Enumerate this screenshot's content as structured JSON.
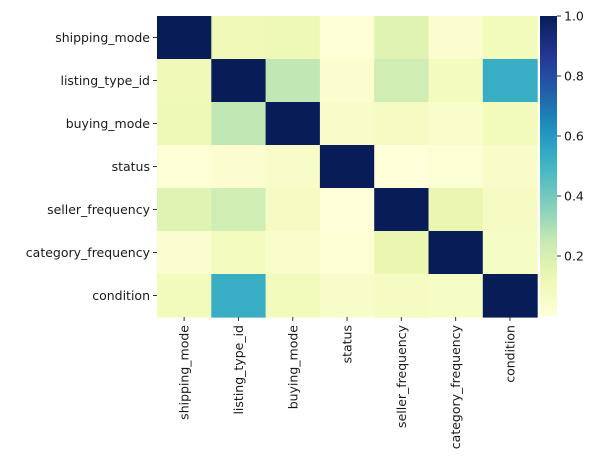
{
  "chart_data": {
    "type": "heatmap",
    "title": "",
    "xlabel": "",
    "ylabel": "",
    "rows": [
      "shipping_mode",
      "listing_type_id",
      "buying_mode",
      "status",
      "seller_frequency",
      "category_frequency",
      "condition"
    ],
    "columns": [
      "shipping_mode",
      "listing_type_id",
      "buying_mode",
      "status",
      "seller_frequency",
      "category_frequency",
      "condition"
    ],
    "values": [
      [
        1.0,
        0.1,
        0.11,
        0.01,
        0.17,
        0.03,
        0.09
      ],
      [
        0.1,
        1.0,
        0.26,
        0.03,
        0.22,
        0.08,
        0.53
      ],
      [
        0.11,
        0.26,
        1.0,
        0.05,
        0.07,
        0.04,
        0.09
      ],
      [
        0.01,
        0.03,
        0.05,
        1.0,
        0.0,
        0.02,
        0.05
      ],
      [
        0.17,
        0.22,
        0.07,
        0.0,
        1.0,
        0.13,
        0.07
      ],
      [
        0.03,
        0.08,
        0.04,
        0.02,
        0.13,
        1.0,
        0.06
      ],
      [
        0.09,
        0.53,
        0.09,
        0.05,
        0.07,
        0.06,
        1.0
      ]
    ],
    "colormap": "YlGnBu",
    "colorbar": {
      "min": 0.0,
      "max": 1.0,
      "ticks": [
        0.2,
        0.4,
        0.6,
        0.8,
        1.0
      ],
      "tick_labels": [
        "0.2",
        "0.4",
        "0.6",
        "0.8",
        "1.0"
      ]
    },
    "grid": false,
    "legend": "colorbar-right"
  }
}
